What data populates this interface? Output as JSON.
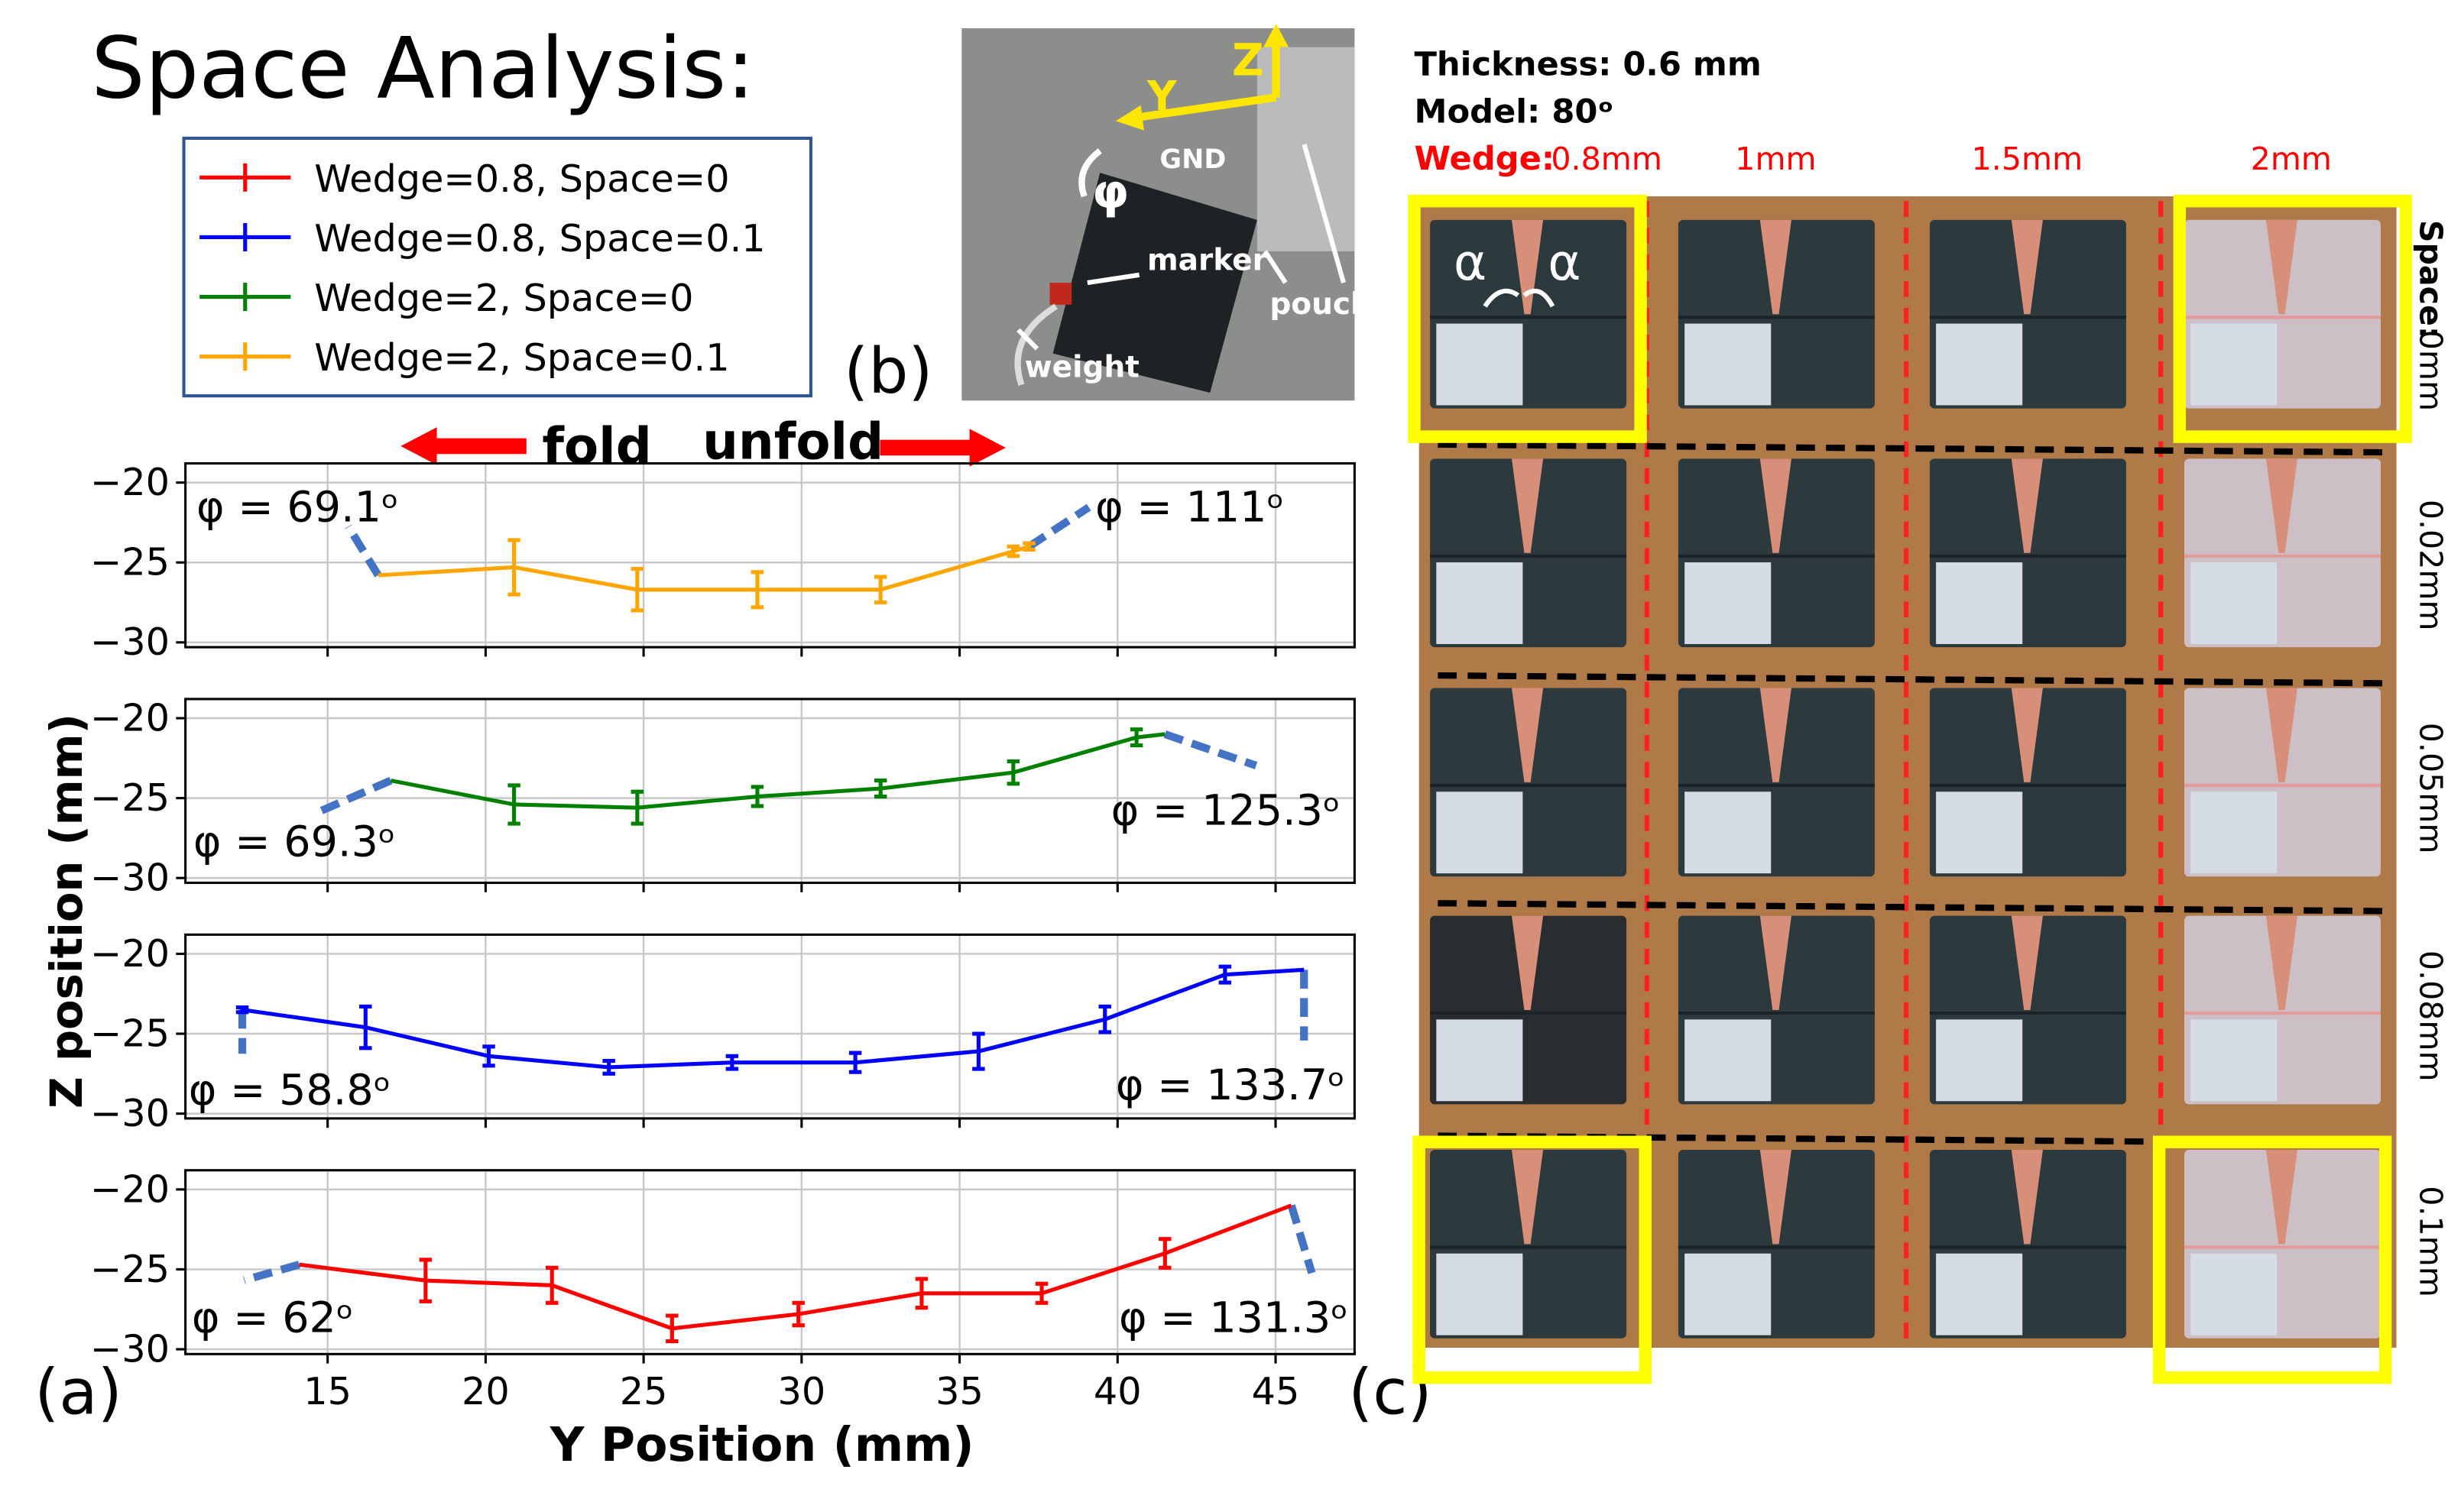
{
  "title": "Space Analysis:",
  "panel_labels": [
    "(a)",
    "(b)",
    "(c)"
  ],
  "directions": [
    "fold",
    "unfold"
  ],
  "shared_ylabel": "Z position (mm)",
  "photo_b": {
    "labels": [
      "Z",
      "Y",
      "GND",
      "φ",
      "marker",
      "pouches",
      "weight"
    ]
  },
  "photo_c": {
    "header": [
      "Thickness: 0.6 mm",
      "Model: 80ᵒ"
    ],
    "wedge_label": "Wedge:",
    "wedge_cols": [
      "0.8mm",
      "1mm",
      "1.5mm",
      "2mm"
    ],
    "space_label": "Space:",
    "space_rows": [
      "0mm",
      "0.02mm",
      "0.05mm",
      "0.08mm",
      "0.1mm"
    ],
    "angle_symbol": "α"
  },
  "chart_data": [
    {
      "type": "line",
      "xlim": [
        10.5,
        47.5
      ],
      "ylim": [
        -30.3,
        -18.8
      ],
      "xticks": [
        15,
        20,
        25,
        30,
        35,
        40,
        45
      ],
      "yticks": [
        {
          "value": -20,
          "label": "−20"
        },
        {
          "value": -25,
          "label": "−25"
        },
        {
          "value": -30,
          "label": "−30"
        }
      ],
      "grid": true,
      "annotations": [
        "φ = 69.1ᵒ",
        "φ = 111ᵒ"
      ],
      "series": [
        {
          "name": "Wedge=2, Space=0.1",
          "color": "#ffa500",
          "x": [
            16.6,
            20.9,
            24.8,
            28.6,
            32.5,
            36.7,
            37.2
          ],
          "values": [
            -25.8,
            -25.3,
            -26.7,
            -26.7,
            -26.7,
            -24.3,
            -24.0
          ],
          "yerr": [
            0,
            1.7,
            1.3,
            1.1,
            0.8,
            0.3,
            0.2
          ]
        }
      ]
    },
    {
      "type": "line",
      "xlim": [
        10.5,
        47.5
      ],
      "ylim": [
        -30.3,
        -18.8
      ],
      "xticks": [
        15,
        20,
        25,
        30,
        35,
        40,
        45
      ],
      "yticks": [
        {
          "value": -20,
          "label": "−20"
        },
        {
          "value": -25,
          "label": "−25"
        },
        {
          "value": -30,
          "label": "−30"
        }
      ],
      "grid": true,
      "annotations": [
        "φ = 69.3ᵒ",
        "φ = 125.3ᵒ"
      ],
      "series": [
        {
          "name": "Wedge=2, Space=0",
          "color": "#008000",
          "x": [
            17.0,
            20.9,
            24.8,
            28.6,
            32.5,
            36.7,
            40.6,
            41.5
          ],
          "values": [
            -23.9,
            -25.4,
            -25.6,
            -24.9,
            -24.4,
            -23.4,
            -21.2,
            -21.0
          ],
          "yerr": [
            0,
            1.2,
            1.0,
            0.6,
            0.5,
            0.7,
            0.5,
            0
          ]
        }
      ]
    },
    {
      "type": "line",
      "xlim": [
        10.5,
        47.5
      ],
      "ylim": [
        -30.3,
        -18.8
      ],
      "xticks": [
        15,
        20,
        25,
        30,
        35,
        40,
        45
      ],
      "yticks": [
        {
          "value": -20,
          "label": "−20"
        },
        {
          "value": -25,
          "label": "−25"
        },
        {
          "value": -30,
          "label": "−30"
        }
      ],
      "grid": true,
      "annotations": [
        "φ = 58.8ᵒ",
        "φ = 133.7ᵒ"
      ],
      "series": [
        {
          "name": "Wedge=0.8, Space=0.1",
          "color": "#0000ff",
          "x": [
            12.3,
            16.2,
            20.1,
            23.9,
            27.8,
            31.7,
            35.6,
            39.6,
            43.4,
            45.9
          ],
          "values": [
            -23.5,
            -24.6,
            -26.4,
            -27.1,
            -26.8,
            -26.8,
            -26.1,
            -24.1,
            -21.3,
            -21.0
          ],
          "yerr": [
            0.15,
            1.3,
            0.6,
            0.4,
            0.4,
            0.6,
            1.1,
            0.8,
            0.5,
            0
          ]
        }
      ]
    },
    {
      "type": "line",
      "xlim": [
        10.5,
        47.5
      ],
      "ylim": [
        -30.3,
        -18.8
      ],
      "xticks": [
        15,
        20,
        25,
        30,
        35,
        40,
        45
      ],
      "yticks": [
        {
          "value": -20,
          "label": "−20"
        },
        {
          "value": -25,
          "label": "−25"
        },
        {
          "value": -30,
          "label": "−30"
        }
      ],
      "grid": true,
      "xlabel": "Y Position (mm)",
      "annotations": [
        "φ = 62ᵒ",
        "φ = 131.3ᵒ"
      ],
      "series": [
        {
          "name": "Wedge=0.8, Space=0",
          "color": "#ff0000",
          "x": [
            14.1,
            18.1,
            22.1,
            25.9,
            29.9,
            33.8,
            37.6,
            41.5,
            45.5
          ],
          "values": [
            -24.7,
            -25.7,
            -26.0,
            -28.7,
            -27.8,
            -26.5,
            -26.5,
            -24.0,
            -21.0
          ],
          "yerr": [
            0,
            1.3,
            1.1,
            0.8,
            0.7,
            0.9,
            0.6,
            0.9,
            0
          ]
        }
      ]
    }
  ]
}
